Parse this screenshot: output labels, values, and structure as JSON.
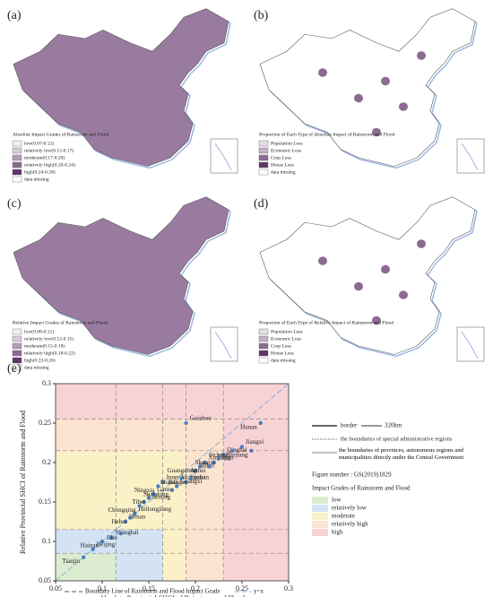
{
  "panels": [
    {
      "label": "(a)",
      "legend_title": "Absolute Impact Grades of Rainstorm and Flood",
      "legend": [
        {
          "name": "low(0.07-0.12)",
          "color": "#f3eef3"
        },
        {
          "name": "relatively low(0.12-0.17)",
          "color": "#d9cbdb"
        },
        {
          "name": "moderate(0.17-0.20)",
          "color": "#b49bb8"
        },
        {
          "name": "relatively high(0.20-0.24)",
          "color": "#8c6a92"
        },
        {
          "name": "high(0.24-0.28)",
          "color": "#5e3566"
        },
        {
          "name": "data missing",
          "color": "#ffffff"
        }
      ]
    },
    {
      "label": "(b)",
      "legend_title": "Proportion of Each Type of Absolute Impact of Rainstorm and Flood",
      "legend": [
        {
          "name": "Population Loss",
          "color": "#e6dde7"
        },
        {
          "name": "Economic Loss",
          "color": "#c2aec5"
        },
        {
          "name": "Crop Loss",
          "color": "#8c6a92"
        },
        {
          "name": "House Loss",
          "color": "#5e3566"
        },
        {
          "name": "data missing",
          "color": "#ffffff"
        }
      ]
    },
    {
      "label": "(c)",
      "legend_title": "Relative Impact Grades of Rainstorm and Flood",
      "legend": [
        {
          "name": "low(0.08-0.12)",
          "color": "#f3eef3"
        },
        {
          "name": "relatively low(0.12-0.15)",
          "color": "#d9cbdb"
        },
        {
          "name": "moderate(0.15-0.18)",
          "color": "#b49bb8"
        },
        {
          "name": "relatively high(0.18-0.22)",
          "color": "#8c6a92"
        },
        {
          "name": "high(0.22-0.26)",
          "color": "#5e3566"
        },
        {
          "name": "data missing",
          "color": "#ffffff"
        }
      ]
    },
    {
      "label": "(d)",
      "legend_title": "Proportion of Each Type of Relative Impact of Rainstorm and Flood",
      "legend": [
        {
          "name": "Population Loss",
          "color": "#e6dde7"
        },
        {
          "name": "Economic Loss",
          "color": "#c2aec5"
        },
        {
          "name": "Crop Loss",
          "color": "#8c6a92"
        },
        {
          "name": "House Loss",
          "color": "#5e3566"
        },
        {
          "name": "data missing",
          "color": "#ffffff"
        }
      ]
    }
  ],
  "chart_data": {
    "type": "scatter",
    "panel_label": "(e)",
    "xlabel": "Absolute Provincial SHCI of Rainstorm and Flood",
    "ylabel": "Relative Provincial SHCI of Rainstorm and Flood",
    "xlim": [
      0.05,
      0.3
    ],
    "ylim": [
      0.05,
      0.3
    ],
    "xticks": [
      0.05,
      0.1,
      0.15,
      0.2,
      0.25,
      0.3
    ],
    "yticks": [
      0.05,
      0.1,
      0.15,
      0.2,
      0.25,
      0.3
    ],
    "color": "#4a7fc0",
    "boundary_x": [
      0.115,
      0.165,
      0.19,
      0.23
    ],
    "boundary_y": [
      0.085,
      0.115,
      0.215,
      0.255
    ],
    "labels": [
      "Tianjin",
      "Beijing",
      "Hainan",
      "Shanghai",
      "Jilin",
      "Henan",
      "Hebei",
      "Heilongjiang",
      "Chongqing",
      "Liaoning",
      "Tibet",
      "Gansu",
      "Ningxia",
      "Inner Mongolia",
      "Shandong",
      "Guangxi",
      "Shanxi",
      "Yunnan",
      "Jiangsu",
      "Hubei",
      "Guangdong",
      "Xinjiang",
      "Anhui",
      "Fujian",
      "Shaanxi",
      "Qinghai",
      "Sichuan",
      "Jiangxi",
      "Zhejiang",
      "Guizhou",
      "Hunan"
    ],
    "x": [
      0.08,
      0.09,
      0.1,
      0.11,
      0.12,
      0.125,
      0.13,
      0.135,
      0.14,
      0.145,
      0.15,
      0.155,
      0.16,
      0.165,
      0.175,
      0.18,
      0.185,
      0.19,
      0.195,
      0.2,
      0.205,
      0.21,
      0.215,
      0.22,
      0.225,
      0.23,
      0.24,
      0.25,
      0.26,
      0.19,
      0.27
    ],
    "y": [
      0.08,
      0.09,
      0.1,
      0.105,
      0.11,
      0.125,
      0.13,
      0.135,
      0.145,
      0.15,
      0.155,
      0.16,
      0.17,
      0.175,
      0.165,
      0.17,
      0.18,
      0.175,
      0.18,
      0.19,
      0.195,
      0.2,
      0.195,
      0.2,
      0.205,
      0.21,
      0.215,
      0.22,
      0.215,
      0.25,
      0.25
    ],
    "map_legend": [
      "border",
      "320km",
      "the boundaries of special administrative regions",
      "the boundaries of provinces, autonomous regions and municipalities directly under the Central Government",
      "Figure number : GS(2019)1829"
    ],
    "grade_title": "Impact Grades of Rainstorm and Flood",
    "grades": [
      {
        "name": "low",
        "color": "#dcecd0"
      },
      {
        "name": "relatively low",
        "color": "#d3e3f3"
      },
      {
        "name": "moderate",
        "color": "#fbf1c7"
      },
      {
        "name": "relatively high",
        "color": "#fce3cf"
      },
      {
        "name": "high",
        "color": "#f8d3d6"
      }
    ],
    "boundary_legend": "Boundary Line of Rainstorm and Flood Impact Grade",
    "diagonal_legend": "y=x"
  }
}
